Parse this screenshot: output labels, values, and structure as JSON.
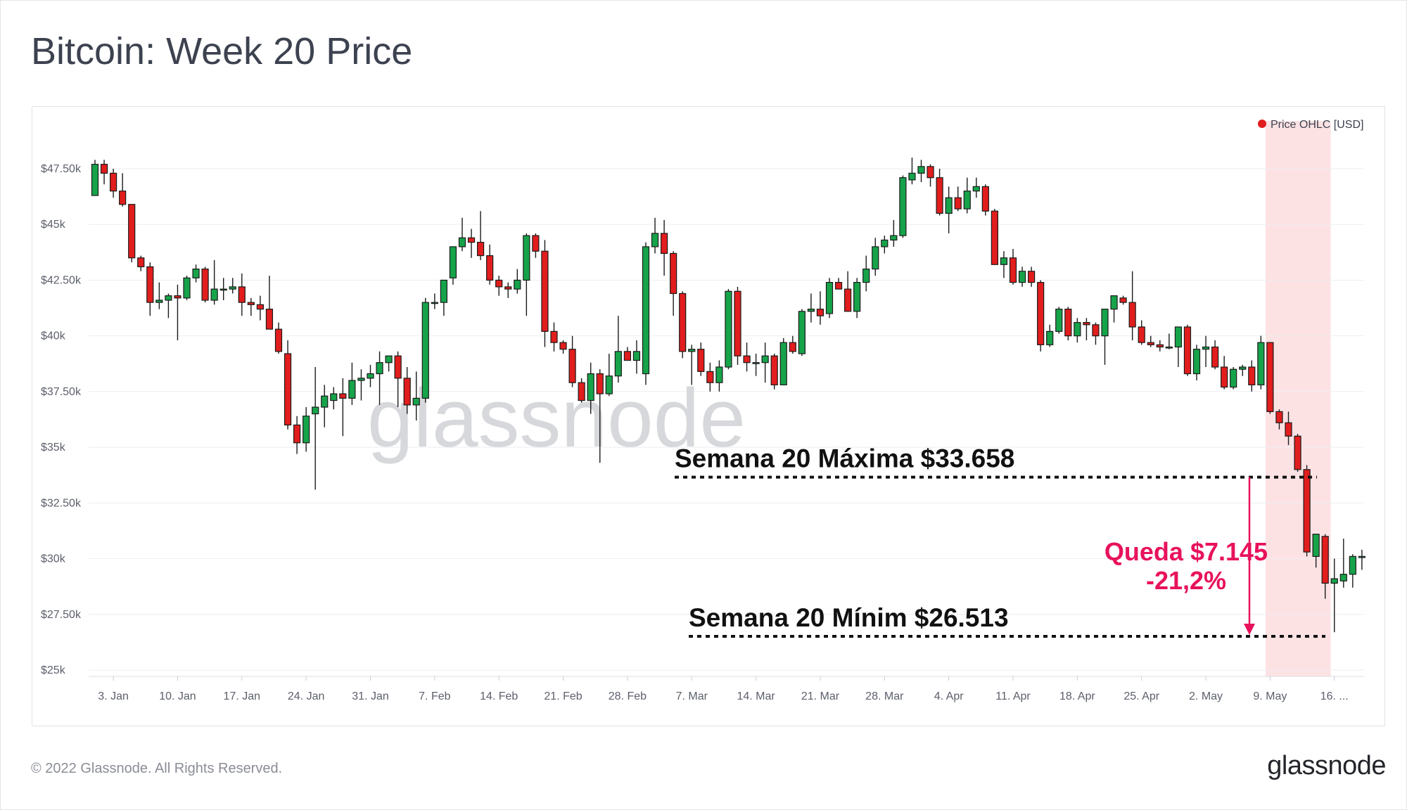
{
  "title": "Bitcoin: Week 20 Price",
  "footer": {
    "copyright": "© 2022 Glassnode. All Rights Reserved.",
    "logo": "glassnode"
  },
  "watermark": "glassnode",
  "colors": {
    "up": "#16a34a",
    "down": "#e11d1d",
    "highlight": "#fde2e4",
    "annotation": "#e8125c"
  },
  "annotations": {
    "max_label": "Semana 20 Máxima $33.658",
    "min_label": "Semana 20 Mínim $26.513",
    "drop_line1": "Queda $7.145",
    "drop_line2": "-21,2%"
  },
  "chart_data": {
    "type": "candlestick",
    "legend": "Price OHLC [USD]",
    "legend_position": "top-right",
    "y_ticks": [
      "$25k",
      "$27.50k",
      "$30k",
      "$32.50k",
      "$35k",
      "$37.50k",
      "$40k",
      "$42.50k",
      "$45k",
      "$47.50k"
    ],
    "y_tick_values": [
      25000,
      27500,
      30000,
      32500,
      35000,
      37500,
      40000,
      42500,
      45000,
      47500
    ],
    "ylim": [
      24700,
      49000
    ],
    "x_ticks": [
      "3. Jan",
      "10. Jan",
      "17. Jan",
      "24. Jan",
      "31. Jan",
      "7. Feb",
      "14. Feb",
      "21. Feb",
      "28. Feb",
      "7. Mar",
      "14. Mar",
      "21. Mar",
      "28. Mar",
      "4. Apr",
      "11. Apr",
      "18. Apr",
      "25. Apr",
      "2. May",
      "9. May",
      "16. ..."
    ],
    "x_tick_day_index": [
      2,
      9,
      16,
      23,
      30,
      37,
      44,
      51,
      58,
      65,
      72,
      79,
      86,
      93,
      100,
      107,
      114,
      121,
      128,
      135
    ],
    "highlight_range_day_index": [
      127.5,
      134.6
    ],
    "week20_high": 33658,
    "week20_low": 26513,
    "ohlc": [
      [
        46300,
        47900,
        46300,
        47700
      ],
      [
        47700,
        47900,
        46800,
        47300
      ],
      [
        47300,
        47500,
        46200,
        46500
      ],
      [
        46500,
        47300,
        45800,
        45900
      ],
      [
        45900,
        45900,
        43300,
        43500
      ],
      [
        43500,
        43600,
        42900,
        43100
      ],
      [
        43100,
        43300,
        40900,
        41500
      ],
      [
        41500,
        42400,
        41200,
        41600
      ],
      [
        41600,
        41900,
        40800,
        41800
      ],
      [
        41800,
        42300,
        39800,
        41700
      ],
      [
        41700,
        42700,
        41600,
        42600
      ],
      [
        42600,
        43200,
        42400,
        43000
      ],
      [
        43000,
        43100,
        41500,
        41600
      ],
      [
        41600,
        43400,
        41400,
        42100
      ],
      [
        42100,
        42600,
        41600,
        42100
      ],
      [
        42100,
        42600,
        41900,
        42200
      ],
      [
        42200,
        42800,
        40900,
        41500
      ],
      [
        41500,
        41700,
        40900,
        41400
      ],
      [
        41400,
        41800,
        40700,
        41200
      ],
      [
        41200,
        42700,
        40300,
        40300
      ],
      [
        40300,
        40600,
        39200,
        39300
      ],
      [
        39200,
        39800,
        35800,
        36000
      ],
      [
        36000,
        36400,
        34700,
        35200
      ],
      [
        35200,
        36800,
        34800,
        36400
      ],
      [
        36500,
        38600,
        33100,
        36800
      ],
      [
        36800,
        37800,
        35900,
        37300
      ],
      [
        37100,
        37700,
        36700,
        37400
      ],
      [
        37400,
        38100,
        35500,
        37200
      ],
      [
        37200,
        38800,
        36900,
        38000
      ],
      [
        38000,
        38500,
        37100,
        38100
      ],
      [
        38100,
        38700,
        37700,
        38300
      ],
      [
        38300,
        39300,
        36900,
        38800
      ],
      [
        38800,
        39100,
        38400,
        39100
      ],
      [
        39100,
        39300,
        36800,
        38100
      ],
      [
        38100,
        38600,
        36500,
        36900
      ],
      [
        36900,
        38400,
        36200,
        37200
      ],
      [
        37200,
        41700,
        37000,
        41500
      ],
      [
        41500,
        41900,
        41200,
        41500
      ],
      [
        41500,
        42300,
        40900,
        42500
      ],
      [
        42600,
        44000,
        42300,
        44000
      ],
      [
        44000,
        45300,
        43800,
        44400
      ],
      [
        44400,
        44800,
        43500,
        44200
      ],
      [
        44200,
        45600,
        43400,
        43600
      ],
      [
        43600,
        44100,
        42300,
        42500
      ],
      [
        42500,
        42700,
        41800,
        42200
      ],
      [
        42200,
        42400,
        41700,
        42100
      ],
      [
        42100,
        43000,
        41900,
        42500
      ],
      [
        42500,
        44600,
        40900,
        44500
      ],
      [
        44500,
        44600,
        43500,
        43800
      ],
      [
        43800,
        44300,
        39500,
        40200
      ],
      [
        40200,
        40600,
        39300,
        39700
      ],
      [
        39700,
        39800,
        39200,
        39400
      ],
      [
        39400,
        40000,
        37700,
        37900
      ],
      [
        37900,
        38100,
        37000,
        37100
      ],
      [
        37100,
        38800,
        36500,
        38300
      ],
      [
        38300,
        38500,
        34300,
        37400
      ],
      [
        37400,
        39200,
        37300,
        38200
      ],
      [
        38200,
        40900,
        37900,
        39300
      ],
      [
        39300,
        39500,
        38900,
        38900
      ],
      [
        38900,
        39800,
        38300,
        39300
      ],
      [
        38300,
        44200,
        37800,
        44000
      ],
      [
        44000,
        45300,
        43700,
        44600
      ],
      [
        44600,
        45200,
        42700,
        43700
      ],
      [
        43700,
        43800,
        40900,
        41900
      ],
      [
        41900,
        42000,
        39000,
        39300
      ],
      [
        39300,
        39600,
        37800,
        39400
      ],
      [
        39400,
        39700,
        38200,
        38400
      ],
      [
        38400,
        38800,
        37500,
        37900
      ],
      [
        37900,
        38900,
        37500,
        38600
      ],
      [
        38600,
        42100,
        38500,
        42000
      ],
      [
        42000,
        42200,
        38700,
        39100
      ],
      [
        39100,
        39700,
        38400,
        38800
      ],
      [
        38800,
        39200,
        38200,
        38800
      ],
      [
        38800,
        39700,
        37900,
        39100
      ],
      [
        39100,
        39200,
        37600,
        37800
      ],
      [
        37800,
        39900,
        37800,
        39700
      ],
      [
        39700,
        40000,
        39200,
        39300
      ],
      [
        39200,
        41200,
        39100,
        41100
      ],
      [
        41100,
        41900,
        40600,
        41200
      ],
      [
        41200,
        42000,
        40500,
        40900
      ],
      [
        41000,
        42600,
        40800,
        42400
      ],
      [
        42400,
        42600,
        42100,
        42100
      ],
      [
        42100,
        42900,
        41200,
        41100
      ],
      [
        41100,
        42600,
        40800,
        42400
      ],
      [
        42400,
        43600,
        42000,
        43000
      ],
      [
        43000,
        44400,
        42700,
        44000
      ],
      [
        44000,
        44500,
        43700,
        44300
      ],
      [
        44300,
        45200,
        44000,
        44500
      ],
      [
        44500,
        47200,
        44400,
        47100
      ],
      [
        47000,
        48000,
        46800,
        47300
      ],
      [
        47300,
        47900,
        46900,
        47600
      ],
      [
        47600,
        47700,
        46700,
        47100
      ],
      [
        47100,
        47500,
        45400,
        45500
      ],
      [
        45500,
        46700,
        44600,
        46200
      ],
      [
        46200,
        46700,
        45600,
        45700
      ],
      [
        45700,
        47100,
        45500,
        46500
      ],
      [
        46500,
        47100,
        46200,
        46700
      ],
      [
        46700,
        46800,
        45400,
        45600
      ],
      [
        45600,
        45700,
        43200,
        43200
      ],
      [
        43200,
        43800,
        42600,
        43500
      ],
      [
        43500,
        43900,
        42300,
        42400
      ],
      [
        42400,
        43100,
        42200,
        42900
      ],
      [
        42900,
        43100,
        42200,
        42400
      ],
      [
        42400,
        42500,
        39300,
        39600
      ],
      [
        39600,
        40500,
        39500,
        40200
      ],
      [
        40200,
        41300,
        40100,
        41200
      ],
      [
        41200,
        41300,
        39800,
        40000
      ],
      [
        40000,
        40800,
        39700,
        40600
      ],
      [
        40600,
        40800,
        39800,
        40500
      ],
      [
        40500,
        40600,
        39600,
        40000
      ],
      [
        40000,
        41100,
        38700,
        41200
      ],
      [
        41200,
        41800,
        40600,
        41800
      ],
      [
        41700,
        41800,
        41400,
        41500
      ],
      [
        41500,
        42900,
        39800,
        40400
      ],
      [
        40400,
        40700,
        39600,
        39700
      ],
      [
        39700,
        40000,
        39500,
        39600
      ],
      [
        39600,
        39800,
        39300,
        39500
      ],
      [
        39500,
        40100,
        39400,
        39500
      ],
      [
        39500,
        40400,
        38600,
        40400
      ],
      [
        40400,
        40500,
        38200,
        38300
      ],
      [
        38300,
        39600,
        38000,
        39400
      ],
      [
        39400,
        40000,
        38600,
        39500
      ],
      [
        39500,
        39800,
        38500,
        38600
      ],
      [
        38600,
        39100,
        37600,
        37700
      ],
      [
        37700,
        38600,
        37600,
        38500
      ],
      [
        38500,
        38700,
        38200,
        38600
      ],
      [
        38600,
        38900,
        37500,
        37800
      ],
      [
        37800,
        40000,
        37600,
        39700
      ],
      [
        39700,
        39700,
        36500,
        36600
      ],
      [
        36600,
        36700,
        35800,
        36100
      ],
      [
        36100,
        36600,
        35100,
        35500
      ],
      [
        35500,
        35600,
        33900,
        34000
      ],
      [
        34000,
        34200,
        30100,
        30300
      ],
      [
        30100,
        30900,
        29600,
        31100
      ],
      [
        31000,
        31100,
        28200,
        28900
      ],
      [
        28900,
        30000,
        26700,
        29100
      ],
      [
        29000,
        30900,
        28700,
        29300
      ],
      [
        29300,
        30200,
        28700,
        30100
      ],
      [
        30100,
        30400,
        29500,
        30100
      ]
    ]
  }
}
